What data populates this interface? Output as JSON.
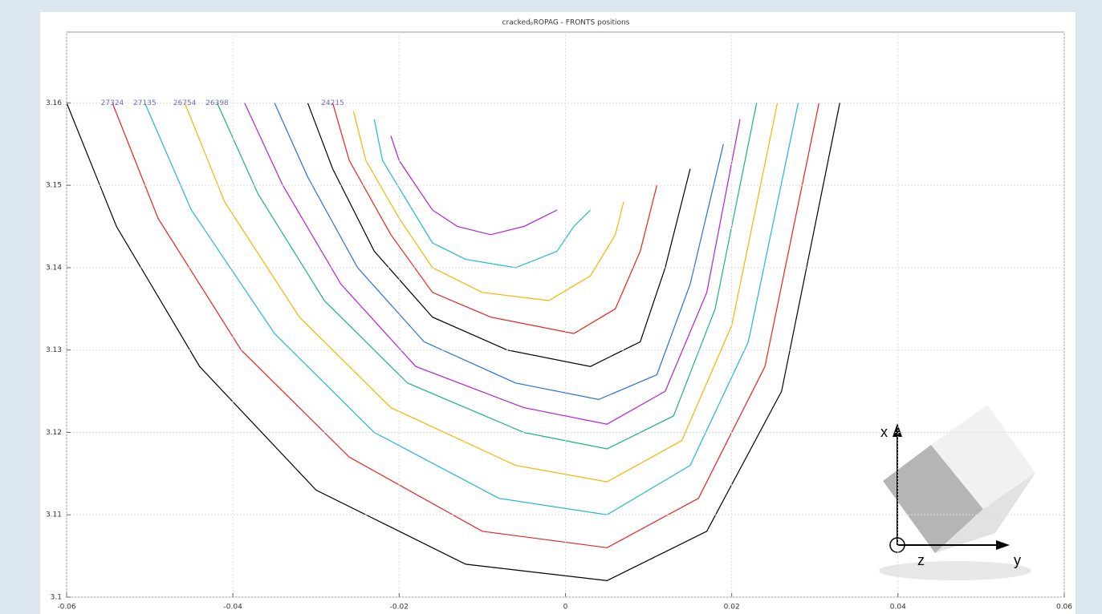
{
  "chart_data": {
    "type": "line",
    "title": "crackedₚROPAG - FRONTS positions",
    "xlim": [
      -0.06,
      0.06
    ],
    "ylim": [
      3.1,
      3.1686
    ],
    "xticks": [
      -0.06,
      -0.04,
      -0.02,
      0,
      0.02,
      0.04,
      0.06
    ],
    "yticks": [
      3.1,
      3.11,
      3.12,
      3.13,
      3.14,
      3.15,
      3.16
    ],
    "grid": true,
    "series": [
      {
        "color": "#000000",
        "x": [
          -0.06,
          -0.054,
          -0.044,
          -0.03,
          -0.012,
          0.005,
          0.017,
          0.026,
          0.033
        ],
        "values": [
          3.16,
          3.145,
          3.128,
          3.113,
          3.104,
          3.102,
          3.108,
          3.125,
          3.16
        ]
      },
      {
        "name": "27324",
        "color": "#e8221c",
        "x": [
          -0.0545,
          -0.049,
          -0.039,
          -0.026,
          -0.01,
          0.005,
          0.016,
          0.024,
          0.0305
        ],
        "values": [
          3.16,
          3.146,
          3.13,
          3.117,
          3.108,
          3.106,
          3.112,
          3.128,
          3.16
        ]
      },
      {
        "name": "27135",
        "color": "#1fb6d8",
        "x": [
          -0.0506,
          -0.045,
          -0.035,
          -0.023,
          -0.008,
          0.005,
          0.015,
          0.022,
          0.028
        ],
        "values": [
          3.16,
          3.147,
          3.132,
          3.12,
          3.112,
          3.11,
          3.116,
          3.131,
          3.16
        ]
      },
      {
        "name": "26754",
        "color": "#f5b400",
        "x": [
          -0.0458,
          -0.041,
          -0.032,
          -0.021,
          -0.006,
          0.005,
          0.014,
          0.02,
          0.0255
        ],
        "values": [
          3.16,
          3.148,
          3.134,
          3.123,
          3.116,
          3.114,
          3.119,
          3.133,
          3.16
        ]
      },
      {
        "name": "26398",
        "color": "#19b37a",
        "x": [
          -0.0419,
          -0.037,
          -0.029,
          -0.019,
          -0.005,
          0.005,
          0.013,
          0.018,
          0.023
        ],
        "values": [
          3.16,
          3.149,
          3.136,
          3.126,
          3.12,
          3.118,
          3.122,
          3.135,
          3.16
        ]
      },
      {
        "color": "#b21fd6",
        "x": [
          -0.0386,
          -0.034,
          -0.027,
          -0.018,
          -0.005,
          0.005,
          0.012,
          0.017,
          0.021
        ],
        "values": [
          3.16,
          3.15,
          3.138,
          3.128,
          3.123,
          3.121,
          3.125,
          3.137,
          3.158
        ]
      },
      {
        "color": "#2a6fd6",
        "x": [
          -0.035,
          -0.031,
          -0.025,
          -0.017,
          -0.006,
          0.004,
          0.011,
          0.015,
          0.019
        ],
        "values": [
          3.16,
          3.151,
          3.14,
          3.131,
          3.126,
          3.124,
          3.127,
          3.138,
          3.155
        ]
      },
      {
        "color": "#000000",
        "x": [
          -0.031,
          -0.028,
          -0.023,
          -0.016,
          -0.007,
          0.003,
          0.009,
          0.012,
          0.015
        ],
        "values": [
          3.16,
          3.152,
          3.142,
          3.134,
          3.13,
          3.128,
          3.131,
          3.14,
          3.152
        ]
      },
      {
        "name": "24215",
        "color": "#e8221c",
        "x": [
          -0.028,
          -0.026,
          -0.021,
          -0.016,
          -0.009,
          0.001,
          0.006,
          0.009,
          0.011
        ],
        "values": [
          3.16,
          3.153,
          3.144,
          3.137,
          3.134,
          3.132,
          3.135,
          3.142,
          3.15
        ]
      },
      {
        "color": "#f5b400",
        "x": [
          -0.0255,
          -0.024,
          -0.02,
          -0.016,
          -0.01,
          -0.002,
          0.003,
          0.006,
          0.007
        ],
        "values": [
          3.159,
          3.153,
          3.146,
          3.14,
          3.137,
          3.136,
          3.139,
          3.144,
          3.148
        ]
      },
      {
        "color": "#1fb6d8",
        "x": [
          -0.023,
          -0.022,
          -0.019,
          -0.016,
          -0.012,
          -0.006,
          -0.001,
          0.001,
          0.003
        ],
        "values": [
          3.158,
          3.153,
          3.148,
          3.143,
          3.141,
          3.14,
          3.142,
          3.145,
          3.147
        ]
      },
      {
        "color": "#b21fd6",
        "x": [
          -0.021,
          -0.02,
          -0.018,
          -0.016,
          -0.013,
          -0.009,
          -0.005,
          -0.003,
          -0.001
        ],
        "values": [
          3.156,
          3.153,
          3.15,
          3.147,
          3.145,
          3.144,
          3.145,
          3.146,
          3.147
        ]
      }
    ]
  },
  "triad": {
    "x": "x",
    "y": "y",
    "z": "z"
  }
}
